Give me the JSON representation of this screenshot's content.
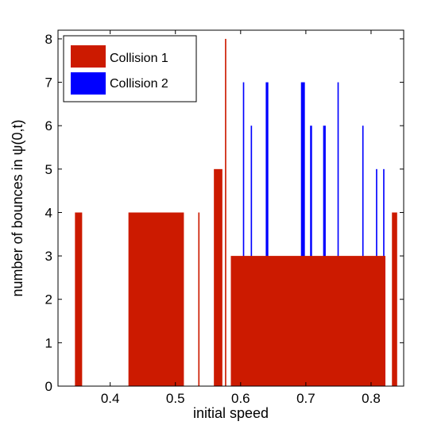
{
  "chart_data": {
    "type": "bar",
    "xlabel": "initial speed",
    "ylabel": "number of bounces in ψ(0,t)",
    "xlim": [
      0.32,
      0.85
    ],
    "ylim": [
      0,
      8.2
    ],
    "xticks": [
      0.4,
      0.5,
      0.6,
      0.7,
      0.8
    ],
    "xtick_labels": [
      "0.4",
      "0.5",
      "0.6",
      "0.7",
      "0.8"
    ],
    "yticks": [
      0,
      1,
      2,
      3,
      4,
      5,
      6,
      7,
      8
    ],
    "ytick_labels": [
      "0",
      "1",
      "2",
      "3",
      "4",
      "5",
      "6",
      "7",
      "8"
    ],
    "grid": false,
    "legend": {
      "placement": "top-left"
    },
    "series": [
      {
        "name": "Collision 1",
        "color": "#cc1a00",
        "bars": [
          {
            "x0": 0.346,
            "x1": 0.357,
            "y": 4
          },
          {
            "x0": 0.428,
            "x1": 0.513,
            "y": 4
          },
          {
            "x0": 0.535,
            "x1": 0.537,
            "y": 4
          },
          {
            "x0": 0.559,
            "x1": 0.572,
            "y": 5
          },
          {
            "x0": 0.576,
            "x1": 0.578,
            "y": 8
          },
          {
            "x0": 0.585,
            "x1": 0.822,
            "y": 3
          },
          {
            "x0": 0.832,
            "x1": 0.84,
            "y": 4
          }
        ]
      },
      {
        "name": "Collision 2",
        "color": "#0000ff",
        "bars": [
          {
            "x0": 0.6035,
            "x1": 0.6055,
            "y": 7
          },
          {
            "x0": 0.6155,
            "x1": 0.6175,
            "y": 6
          },
          {
            "x0": 0.6385,
            "x1": 0.6425,
            "y": 7
          },
          {
            "x0": 0.6925,
            "x1": 0.6985,
            "y": 7
          },
          {
            "x0": 0.7065,
            "x1": 0.7095,
            "y": 6
          },
          {
            "x0": 0.7265,
            "x1": 0.7305,
            "y": 6
          },
          {
            "x0": 0.7485,
            "x1": 0.7505,
            "y": 7
          },
          {
            "x0": 0.7865,
            "x1": 0.7885,
            "y": 6
          },
          {
            "x0": 0.8075,
            "x1": 0.8095,
            "y": 5
          },
          {
            "x0": 0.8185,
            "x1": 0.8205,
            "y": 5
          }
        ]
      }
    ]
  }
}
